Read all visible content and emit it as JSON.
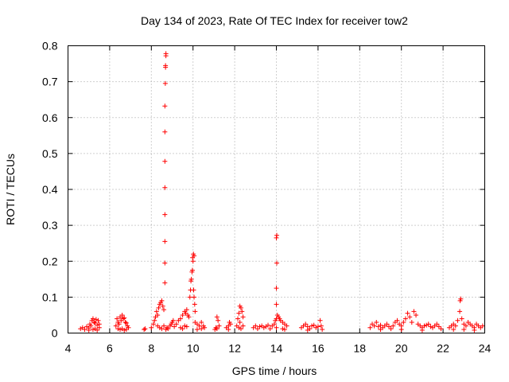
{
  "chart_data": {
    "type": "scatter",
    "title": "Day 134 of 2023, Rate Of TEC Index for receiver tow2",
    "xlabel": "GPS time / hours",
    "ylabel": "ROTI / TECUs",
    "xlim": [
      4,
      24
    ],
    "ylim": [
      0,
      0.8
    ],
    "xticks": [
      "4",
      "6",
      "8",
      "10",
      "12",
      "14",
      "16",
      "18",
      "20",
      "22",
      "24"
    ],
    "yticks": [
      "0",
      "0.1",
      "0.2",
      "0.3",
      "0.4",
      "0.5",
      "0.6",
      "0.7",
      "0.8"
    ],
    "grid": true,
    "marker": "+",
    "color": "#ff0000",
    "series": [
      {
        "name": "ROTI",
        "points": [
          [
            4.6,
            0.012
          ],
          [
            4.7,
            0.015
          ],
          [
            4.8,
            0.01
          ],
          [
            4.9,
            0.018
          ],
          [
            5.0,
            0.014
          ],
          [
            5.05,
            0.025
          ],
          [
            5.1,
            0.02
          ],
          [
            5.15,
            0.035
          ],
          [
            5.2,
            0.04
          ],
          [
            5.25,
            0.03
          ],
          [
            5.3,
            0.028
          ],
          [
            5.35,
            0.038
          ],
          [
            5.4,
            0.022
          ],
          [
            5.45,
            0.035
          ],
          [
            5.5,
            0.025
          ],
          [
            5.2,
            0.01
          ],
          [
            5.3,
            0.012
          ],
          [
            5.4,
            0.008
          ],
          [
            5.5,
            0.015
          ],
          [
            5.0,
            0.008
          ],
          [
            6.3,
            0.02
          ],
          [
            6.35,
            0.04
          ],
          [
            6.4,
            0.03
          ],
          [
            6.45,
            0.025
          ],
          [
            6.5,
            0.045
          ],
          [
            6.55,
            0.035
          ],
          [
            6.6,
            0.05
          ],
          [
            6.65,
            0.04
          ],
          [
            6.7,
            0.042
          ],
          [
            6.75,
            0.03
          ],
          [
            6.8,
            0.028
          ],
          [
            6.85,
            0.02
          ],
          [
            6.9,
            0.015
          ],
          [
            6.5,
            0.01
          ],
          [
            6.6,
            0.012
          ],
          [
            6.7,
            0.008
          ],
          [
            6.4,
            0.012
          ],
          [
            6.8,
            0.01
          ],
          [
            7.65,
            0.01
          ],
          [
            7.7,
            0.012
          ],
          [
            8.0,
            0.015
          ],
          [
            8.1,
            0.025
          ],
          [
            8.15,
            0.035
          ],
          [
            8.2,
            0.045
          ],
          [
            8.25,
            0.06
          ],
          [
            8.3,
            0.05
          ],
          [
            8.35,
            0.07
          ],
          [
            8.4,
            0.08
          ],
          [
            8.45,
            0.085
          ],
          [
            8.5,
            0.09
          ],
          [
            8.55,
            0.075
          ],
          [
            8.6,
            0.065
          ],
          [
            8.3,
            0.02
          ],
          [
            8.4,
            0.015
          ],
          [
            8.5,
            0.012
          ],
          [
            8.6,
            0.02
          ],
          [
            8.7,
            0.01
          ],
          [
            8.75,
            0.015
          ],
          [
            8.8,
            0.012
          ],
          [
            8.9,
            0.02
          ],
          [
            8.95,
            0.025
          ],
          [
            9.0,
            0.03
          ],
          [
            9.05,
            0.035
          ],
          [
            9.1,
            0.018
          ],
          [
            8.65,
            0.14
          ],
          [
            8.65,
            0.195
          ],
          [
            8.65,
            0.255
          ],
          [
            8.65,
            0.33
          ],
          [
            8.65,
            0.405
          ],
          [
            8.65,
            0.478
          ],
          [
            8.65,
            0.56
          ],
          [
            8.65,
            0.632
          ],
          [
            8.67,
            0.695
          ],
          [
            8.68,
            0.74
          ],
          [
            8.68,
            0.745
          ],
          [
            8.7,
            0.772
          ],
          [
            8.7,
            0.778
          ],
          [
            9.2,
            0.025
          ],
          [
            9.3,
            0.035
          ],
          [
            9.4,
            0.04
          ],
          [
            9.5,
            0.05
          ],
          [
            9.6,
            0.06
          ],
          [
            9.65,
            0.055
          ],
          [
            9.7,
            0.065
          ],
          [
            9.75,
            0.05
          ],
          [
            9.8,
            0.045
          ],
          [
            9.4,
            0.015
          ],
          [
            9.5,
            0.012
          ],
          [
            9.6,
            0.02
          ],
          [
            9.7,
            0.018
          ],
          [
            9.85,
            0.1
          ],
          [
            9.88,
            0.12
          ],
          [
            9.9,
            0.145
          ],
          [
            9.92,
            0.15
          ],
          [
            9.95,
            0.17
          ],
          [
            9.97,
            0.175
          ],
          [
            10.0,
            0.2
          ],
          [
            9.98,
            0.21
          ],
          [
            10.02,
            0.22
          ],
          [
            10.05,
            0.215
          ],
          [
            10.03,
            0.12
          ],
          [
            10.05,
            0.1
          ],
          [
            10.08,
            0.08
          ],
          [
            10.1,
            0.06
          ],
          [
            10.1,
            0.03
          ],
          [
            10.2,
            0.025
          ],
          [
            10.3,
            0.02
          ],
          [
            10.4,
            0.03
          ],
          [
            10.5,
            0.02
          ],
          [
            10.2,
            0.01
          ],
          [
            10.4,
            0.012
          ],
          [
            10.55,
            0.015
          ],
          [
            11.05,
            0.01
          ],
          [
            11.1,
            0.015
          ],
          [
            11.15,
            0.045
          ],
          [
            11.2,
            0.035
          ],
          [
            11.25,
            0.02
          ],
          [
            11.15,
            0.012
          ],
          [
            11.6,
            0.015
          ],
          [
            11.7,
            0.02
          ],
          [
            11.75,
            0.03
          ],
          [
            11.8,
            0.025
          ],
          [
            11.7,
            0.01
          ],
          [
            12.1,
            0.02
          ],
          [
            12.15,
            0.04
          ],
          [
            12.2,
            0.055
          ],
          [
            12.25,
            0.075
          ],
          [
            12.3,
            0.07
          ],
          [
            12.35,
            0.06
          ],
          [
            12.4,
            0.045
          ],
          [
            12.2,
            0.015
          ],
          [
            12.3,
            0.012
          ],
          [
            12.4,
            0.02
          ],
          [
            12.25,
            0.03
          ],
          [
            12.9,
            0.015
          ],
          [
            13.0,
            0.02
          ],
          [
            13.1,
            0.012
          ],
          [
            13.2,
            0.018
          ],
          [
            13.3,
            0.02
          ],
          [
            13.4,
            0.015
          ],
          [
            13.5,
            0.018
          ],
          [
            13.6,
            0.022
          ],
          [
            13.7,
            0.012
          ],
          [
            13.8,
            0.02
          ],
          [
            13.9,
            0.025
          ],
          [
            13.95,
            0.035
          ],
          [
            14.0,
            0.04
          ],
          [
            14.05,
            0.05
          ],
          [
            14.1,
            0.045
          ],
          [
            14.15,
            0.04
          ],
          [
            14.2,
            0.035
          ],
          [
            14.3,
            0.03
          ],
          [
            14.4,
            0.025
          ],
          [
            14.5,
            0.02
          ],
          [
            14.3,
            0.012
          ],
          [
            14.4,
            0.01
          ],
          [
            14.0,
            0.015
          ],
          [
            14.0,
            0.08
          ],
          [
            14.0,
            0.125
          ],
          [
            14.02,
            0.195
          ],
          [
            14.0,
            0.265
          ],
          [
            14.02,
            0.272
          ],
          [
            15.2,
            0.015
          ],
          [
            15.3,
            0.02
          ],
          [
            15.4,
            0.025
          ],
          [
            15.5,
            0.018
          ],
          [
            15.6,
            0.012
          ],
          [
            15.7,
            0.02
          ],
          [
            15.8,
            0.022
          ],
          [
            15.9,
            0.015
          ],
          [
            16.0,
            0.018
          ],
          [
            16.1,
            0.035
          ],
          [
            16.15,
            0.02
          ],
          [
            16.2,
            0.01
          ],
          [
            15.5,
            0.008
          ],
          [
            18.5,
            0.015
          ],
          [
            18.6,
            0.025
          ],
          [
            18.7,
            0.02
          ],
          [
            18.8,
            0.03
          ],
          [
            18.9,
            0.018
          ],
          [
            19.0,
            0.022
          ],
          [
            19.1,
            0.015
          ],
          [
            19.2,
            0.02
          ],
          [
            19.3,
            0.025
          ],
          [
            19.4,
            0.018
          ],
          [
            19.5,
            0.012
          ],
          [
            19.6,
            0.02
          ],
          [
            19.7,
            0.03
          ],
          [
            19.8,
            0.035
          ],
          [
            19.9,
            0.025
          ],
          [
            20.0,
            0.02
          ],
          [
            20.1,
            0.03
          ],
          [
            20.2,
            0.04
          ],
          [
            20.3,
            0.055
          ],
          [
            20.4,
            0.045
          ],
          [
            20.5,
            0.03
          ],
          [
            20.6,
            0.06
          ],
          [
            20.7,
            0.05
          ],
          [
            20.8,
            0.025
          ],
          [
            20.9,
            0.02
          ],
          [
            21.0,
            0.015
          ],
          [
            21.1,
            0.02
          ],
          [
            21.2,
            0.022
          ],
          [
            21.3,
            0.025
          ],
          [
            21.4,
            0.018
          ],
          [
            21.5,
            0.015
          ],
          [
            21.6,
            0.02
          ],
          [
            21.7,
            0.025
          ],
          [
            21.8,
            0.018
          ],
          [
            21.9,
            0.012
          ],
          [
            19.0,
            0.01
          ],
          [
            20.0,
            0.01
          ],
          [
            21.0,
            0.008
          ],
          [
            22.3,
            0.015
          ],
          [
            22.4,
            0.02
          ],
          [
            22.5,
            0.025
          ],
          [
            22.6,
            0.02
          ],
          [
            22.7,
            0.035
          ],
          [
            22.8,
            0.06
          ],
          [
            22.82,
            0.09
          ],
          [
            22.85,
            0.095
          ],
          [
            22.9,
            0.04
          ],
          [
            23.0,
            0.025
          ],
          [
            23.1,
            0.02
          ],
          [
            23.2,
            0.03
          ],
          [
            23.3,
            0.025
          ],
          [
            23.4,
            0.02
          ],
          [
            23.5,
            0.015
          ],
          [
            23.6,
            0.025
          ],
          [
            23.7,
            0.02
          ],
          [
            23.8,
            0.015
          ],
          [
            23.9,
            0.02
          ],
          [
            22.5,
            0.01
          ],
          [
            23.0,
            0.01
          ],
          [
            23.5,
            0.008
          ]
        ]
      }
    ]
  }
}
